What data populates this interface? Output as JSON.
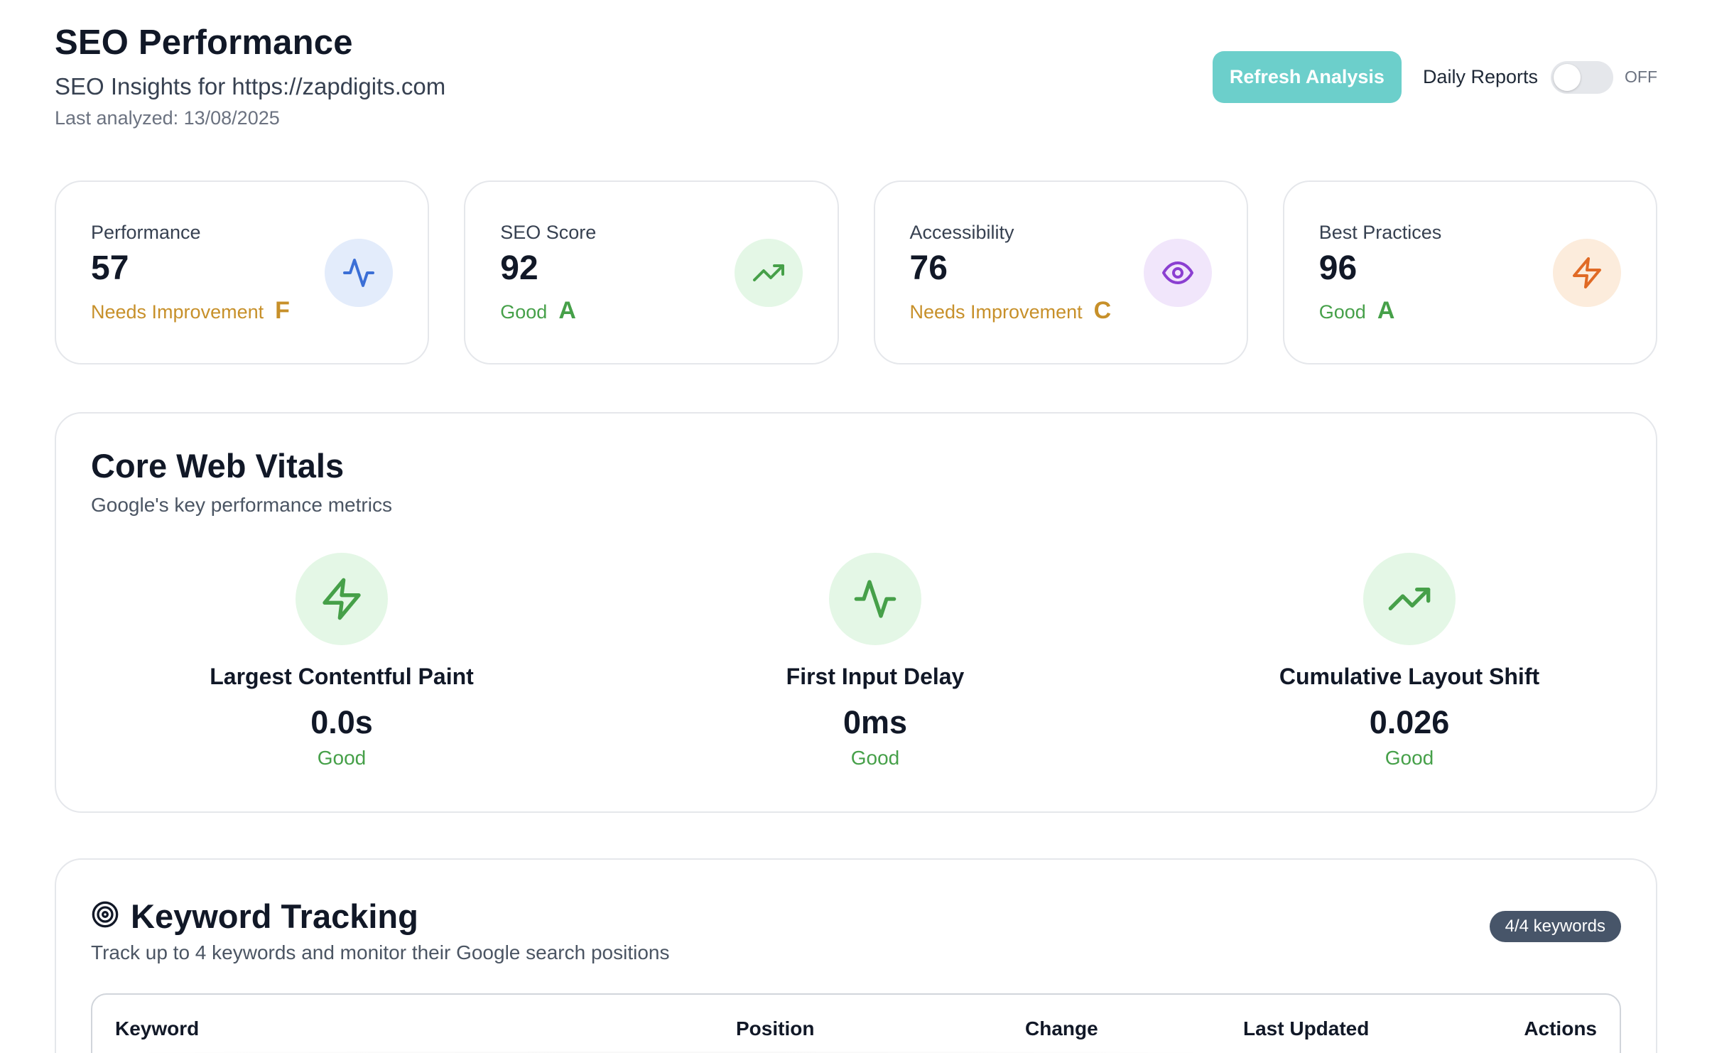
{
  "header": {
    "title": "SEO Performance",
    "subtitle": "SEO Insights for https://zapdigits.com",
    "last_analyzed": "Last analyzed: 13/08/2025",
    "refresh_label": "Refresh Analysis",
    "daily_reports_label": "Daily Reports",
    "toggle_state": "OFF"
  },
  "cards": [
    {
      "label": "Performance",
      "value": "57",
      "status": "Needs Improvement",
      "grade": "F",
      "icon": "activity-icon",
      "icon_color": "#3b6fd6",
      "icon_bg": "#e3ecfb"
    },
    {
      "label": "SEO Score",
      "value": "92",
      "status": "Good",
      "grade": "A",
      "icon": "trending-up-icon",
      "icon_color": "#46a049",
      "icon_bg": "#e4f7e6"
    },
    {
      "label": "Accessibility",
      "value": "76",
      "status": "Needs Improvement",
      "grade": "C",
      "icon": "eye-icon",
      "icon_color": "#8b3fd1",
      "icon_bg": "#f1e6fb"
    },
    {
      "label": "Best Practices",
      "value": "96",
      "status": "Good",
      "grade": "A",
      "icon": "zap-icon",
      "icon_color": "#e06a25",
      "icon_bg": "#fcecdc"
    }
  ],
  "vitals": {
    "title": "Core Web Vitals",
    "subtitle": "Google's key performance metrics",
    "items": [
      {
        "name": "Largest Contentful Paint",
        "value": "0.0s",
        "status": "Good",
        "icon": "zap-icon"
      },
      {
        "name": "First Input Delay",
        "value": "0ms",
        "status": "Good",
        "icon": "activity-icon"
      },
      {
        "name": "Cumulative Layout Shift",
        "value": "0.026",
        "status": "Good",
        "icon": "trending-up-icon"
      }
    ]
  },
  "keywords": {
    "title": "Keyword Tracking",
    "subtitle": "Track up to 4 keywords and monitor their Google search positions",
    "badge": "4/4 keywords",
    "columns": [
      "Keyword",
      "Position",
      "Change",
      "Last Updated",
      "Actions"
    ]
  },
  "colors": {
    "accent": "#6ccfcb",
    "good": "#46a049",
    "warn": "#c7902a"
  }
}
